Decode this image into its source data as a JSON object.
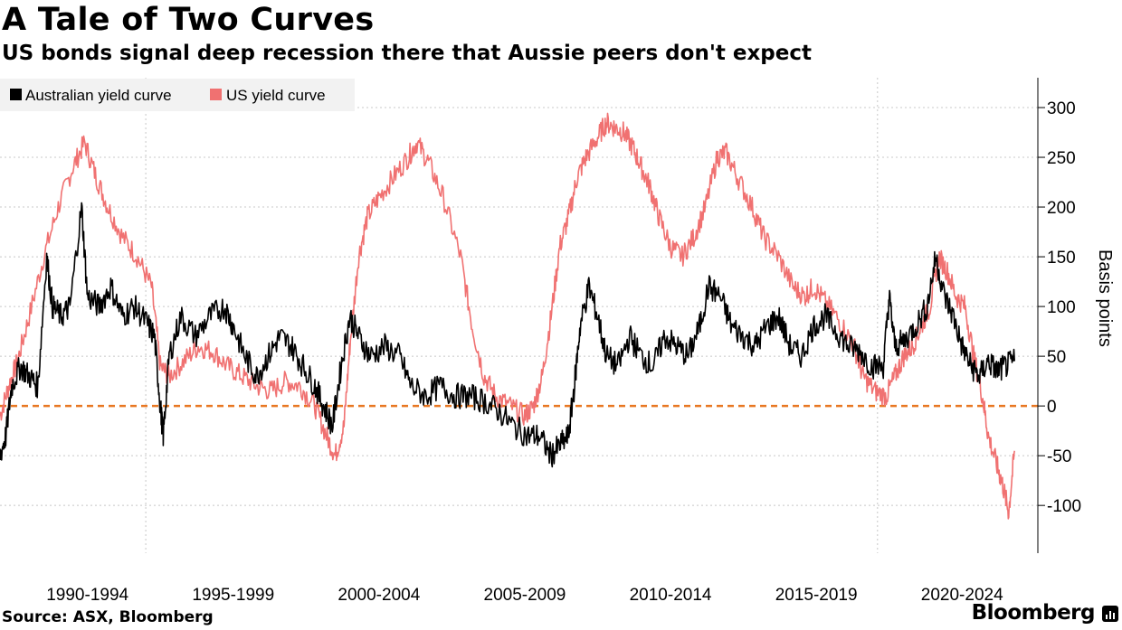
{
  "header": {
    "title": "A Tale of Two Curves",
    "subtitle": "US bonds signal deep recession there that Aussie peers don't expect"
  },
  "footer": {
    "source": "Source: ASX, Bloomberg",
    "brand": "Bloomberg"
  },
  "colors": {
    "australia": "#000000",
    "us": "#f07171",
    "zero_line": "#e87722",
    "grid": "#c8c8c8"
  },
  "chart_data": {
    "type": "line",
    "title": "A Tale of Two Curves",
    "subtitle": "US bonds signal deep recession there that Aussie peers don't expect",
    "ylabel": "Basis points",
    "xlabel": "",
    "ylim": [
      -148,
      330
    ],
    "yticks": [
      300,
      250,
      200,
      150,
      100,
      50,
      0,
      -50,
      -100
    ],
    "ytick_labels": [
      "300",
      "250",
      "200",
      "150",
      "100",
      "50",
      "0",
      "-50",
      "-100"
    ],
    "xlim": [
      1989.0,
      2024.6
    ],
    "xticks": [
      {
        "label": "1990-1994",
        "center": 1992.0
      },
      {
        "label": "1995-1999",
        "center": 1997.0
      },
      {
        "label": "2000-2004",
        "center": 2002.0
      },
      {
        "label": "2005-2009",
        "center": 2007.0
      },
      {
        "label": "2010-2014",
        "center": 2012.0
      },
      {
        "label": "2015-2019",
        "center": 2017.0
      },
      {
        "label": "2020-2024",
        "center": 2022.0
      }
    ],
    "x_separators": [
      1994.0,
      2019.1
    ],
    "zero_line": 0,
    "legend": [
      "Australian yield curve",
      "US yield curve"
    ],
    "series": [
      {
        "name": "US yield curve",
        "points": [
          [
            1989.0,
            -10
          ],
          [
            1989.3,
            20
          ],
          [
            1989.6,
            45
          ],
          [
            1990.0,
            90
          ],
          [
            1990.5,
            150
          ],
          [
            1991.0,
            200
          ],
          [
            1991.5,
            240
          ],
          [
            1991.9,
            265
          ],
          [
            1992.3,
            230
          ],
          [
            1992.7,
            200
          ],
          [
            1993.2,
            170
          ],
          [
            1993.7,
            150
          ],
          [
            1994.2,
            120
          ],
          [
            1994.5,
            40
          ],
          [
            1994.8,
            30
          ],
          [
            1995.3,
            45
          ],
          [
            1995.8,
            60
          ],
          [
            1996.3,
            55
          ],
          [
            1996.8,
            40
          ],
          [
            1997.3,
            30
          ],
          [
            1997.8,
            20
          ],
          [
            1998.3,
            15
          ],
          [
            1998.8,
            25
          ],
          [
            1999.3,
            20
          ],
          [
            1999.8,
            0
          ],
          [
            2000.2,
            -30
          ],
          [
            2000.5,
            -50
          ],
          [
            2000.8,
            -20
          ],
          [
            2001.0,
            60
          ],
          [
            2001.3,
            150
          ],
          [
            2001.6,
            190
          ],
          [
            2002.0,
            210
          ],
          [
            2002.5,
            230
          ],
          [
            2003.0,
            250
          ],
          [
            2003.3,
            265
          ],
          [
            2003.7,
            245
          ],
          [
            2004.2,
            210
          ],
          [
            2004.8,
            150
          ],
          [
            2005.2,
            80
          ],
          [
            2005.6,
            30
          ],
          [
            2006.0,
            10
          ],
          [
            2006.5,
            0
          ],
          [
            2007.0,
            -10
          ],
          [
            2007.3,
            0
          ],
          [
            2007.6,
            30
          ],
          [
            2007.9,
            90
          ],
          [
            2008.2,
            160
          ],
          [
            2008.5,
            190
          ],
          [
            2008.8,
            230
          ],
          [
            2009.1,
            250
          ],
          [
            2009.5,
            270
          ],
          [
            2009.8,
            285
          ],
          [
            2010.1,
            280
          ],
          [
            2010.4,
            275
          ],
          [
            2010.7,
            260
          ],
          [
            2011.0,
            240
          ],
          [
            2011.3,
            220
          ],
          [
            2011.6,
            190
          ],
          [
            2012.0,
            160
          ],
          [
            2012.4,
            150
          ],
          [
            2012.8,
            170
          ],
          [
            2013.2,
            200
          ],
          [
            2013.6,
            250
          ],
          [
            2013.9,
            255
          ],
          [
            2014.3,
            230
          ],
          [
            2014.8,
            200
          ],
          [
            2015.2,
            170
          ],
          [
            2015.7,
            150
          ],
          [
            2016.2,
            120
          ],
          [
            2016.6,
            110
          ],
          [
            2016.9,
            120
          ],
          [
            2017.3,
            105
          ],
          [
            2017.8,
            85
          ],
          [
            2018.3,
            60
          ],
          [
            2018.6,
            30
          ],
          [
            2019.0,
            15
          ],
          [
            2019.4,
            10
          ],
          [
            2019.7,
            30
          ],
          [
            2020.0,
            50
          ],
          [
            2020.3,
            60
          ],
          [
            2020.6,
            80
          ],
          [
            2020.9,
            100
          ],
          [
            2021.2,
            150
          ],
          [
            2021.5,
            135
          ],
          [
            2021.8,
            110
          ],
          [
            2022.1,
            100
          ],
          [
            2022.4,
            50
          ],
          [
            2022.7,
            10
          ],
          [
            2022.9,
            -30
          ],
          [
            2023.2,
            -60
          ],
          [
            2023.4,
            -80
          ],
          [
            2023.6,
            -107
          ],
          [
            2023.8,
            -45
          ]
        ]
      },
      {
        "name": "Australian yield curve",
        "points": [
          [
            1989.0,
            -50
          ],
          [
            1989.2,
            -30
          ],
          [
            1989.4,
            20
          ],
          [
            1989.7,
            40
          ],
          [
            1990.0,
            30
          ],
          [
            1990.3,
            20
          ],
          [
            1990.6,
            150
          ],
          [
            1990.8,
            100
          ],
          [
            1991.1,
            90
          ],
          [
            1991.4,
            100
          ],
          [
            1991.8,
            200
          ],
          [
            1992.0,
            110
          ],
          [
            1992.4,
            100
          ],
          [
            1992.8,
            120
          ],
          [
            1993.2,
            90
          ],
          [
            1993.6,
            100
          ],
          [
            1994.0,
            85
          ],
          [
            1994.3,
            70
          ],
          [
            1994.5,
            0
          ],
          [
            1994.6,
            -30
          ],
          [
            1994.8,
            50
          ],
          [
            1995.2,
            90
          ],
          [
            1995.7,
            70
          ],
          [
            1996.2,
            90
          ],
          [
            1996.7,
            100
          ],
          [
            1997.0,
            80
          ],
          [
            1997.4,
            50
          ],
          [
            1997.8,
            30
          ],
          [
            1998.2,
            50
          ],
          [
            1998.6,
            70
          ],
          [
            1999.0,
            60
          ],
          [
            1999.4,
            40
          ],
          [
            1999.8,
            20
          ],
          [
            2000.1,
            0
          ],
          [
            2000.4,
            -20
          ],
          [
            2000.7,
            40
          ],
          [
            2001.0,
            90
          ],
          [
            2001.3,
            70
          ],
          [
            2001.7,
            50
          ],
          [
            2002.2,
            60
          ],
          [
            2002.7,
            50
          ],
          [
            2003.1,
            20
          ],
          [
            2003.6,
            10
          ],
          [
            2004.1,
            20
          ],
          [
            2004.6,
            10
          ],
          [
            2005.1,
            10
          ],
          [
            2005.6,
            5
          ],
          [
            2006.1,
            -5
          ],
          [
            2006.6,
            -20
          ],
          [
            2007.1,
            -30
          ],
          [
            2007.5,
            -30
          ],
          [
            2007.9,
            -50
          ],
          [
            2008.2,
            -40
          ],
          [
            2008.5,
            -30
          ],
          [
            2008.7,
            20
          ],
          [
            2008.9,
            80
          ],
          [
            2009.2,
            120
          ],
          [
            2009.5,
            90
          ],
          [
            2009.8,
            50
          ],
          [
            2010.2,
            40
          ],
          [
            2010.6,
            70
          ],
          [
            2011.0,
            50
          ],
          [
            2011.4,
            40
          ],
          [
            2011.8,
            70
          ],
          [
            2012.2,
            60
          ],
          [
            2012.6,
            50
          ],
          [
            2013.0,
            80
          ],
          [
            2013.3,
            120
          ],
          [
            2013.7,
            110
          ],
          [
            2014.1,
            80
          ],
          [
            2014.5,
            70
          ],
          [
            2014.9,
            60
          ],
          [
            2015.3,
            80
          ],
          [
            2015.7,
            90
          ],
          [
            2016.1,
            60
          ],
          [
            2016.5,
            50
          ],
          [
            2016.9,
            80
          ],
          [
            2017.3,
            90
          ],
          [
            2017.7,
            75
          ],
          [
            2018.1,
            60
          ],
          [
            2018.5,
            55
          ],
          [
            2018.9,
            40
          ],
          [
            2019.3,
            40
          ],
          [
            2019.5,
            110
          ],
          [
            2019.7,
            60
          ],
          [
            2020.0,
            65
          ],
          [
            2020.4,
            80
          ],
          [
            2020.8,
            100
          ],
          [
            2021.1,
            150
          ],
          [
            2021.4,
            110
          ],
          [
            2021.7,
            90
          ],
          [
            2022.0,
            60
          ],
          [
            2022.3,
            40
          ],
          [
            2022.6,
            30
          ],
          [
            2022.9,
            45
          ],
          [
            2023.2,
            35
          ],
          [
            2023.5,
            40
          ],
          [
            2023.8,
            45
          ]
        ]
      }
    ]
  }
}
